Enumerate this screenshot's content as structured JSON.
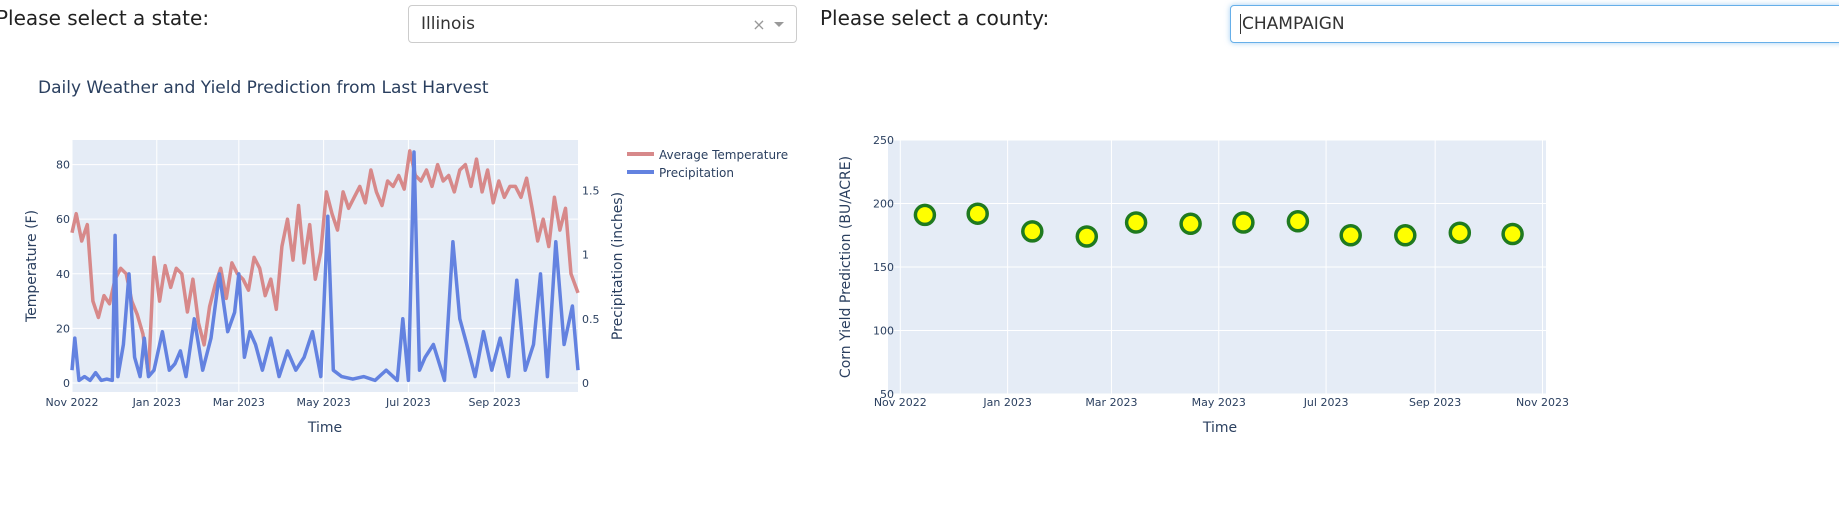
{
  "controls": {
    "state_label": "Please select a state:",
    "state_value": "Illinois",
    "county_label": "Please select a county:",
    "county_value": "CHAMPAIGN"
  },
  "chart_data": [
    {
      "type": "line",
      "title": "Daily Weather and Yield Prediction from Last Harvest",
      "xlabel": "Time",
      "ylabel": "Temperature (F)",
      "y2label": "Precipitation (inches)",
      "x_range": [
        "2022-11-01",
        "2023-10-31"
      ],
      "x_ticks": [
        "Nov 2022",
        "Jan 2023",
        "Mar 2023",
        "May 2023",
        "Jul 2023",
        "Sep 2023"
      ],
      "y_ticks": [
        0,
        20,
        40,
        60,
        80
      ],
      "y2_ticks": [
        0,
        0.5,
        1,
        1.5
      ],
      "ylim": [
        0,
        89
      ],
      "y2lim": [
        0,
        1.8
      ],
      "legend_position": "top-right outside",
      "series": [
        {
          "name": "Average Temperature",
          "color": "#d7898a",
          "axis": "y",
          "x": [
            "2022-11-01",
            "2022-11-04",
            "2022-11-08",
            "2022-11-12",
            "2022-11-16",
            "2022-11-20",
            "2022-11-24",
            "2022-11-28",
            "2022-12-02",
            "2022-12-06",
            "2022-12-10",
            "2022-12-14",
            "2022-12-18",
            "2022-12-22",
            "2022-12-26",
            "2022-12-30",
            "2023-01-03",
            "2023-01-07",
            "2023-01-11",
            "2023-01-15",
            "2023-01-19",
            "2023-01-23",
            "2023-01-27",
            "2023-01-31",
            "2023-02-04",
            "2023-02-08",
            "2023-02-12",
            "2023-02-16",
            "2023-02-20",
            "2023-02-24",
            "2023-02-28",
            "2023-03-04",
            "2023-03-08",
            "2023-03-12",
            "2023-03-16",
            "2023-03-20",
            "2023-03-24",
            "2023-03-28",
            "2023-04-01",
            "2023-04-05",
            "2023-04-09",
            "2023-04-13",
            "2023-04-17",
            "2023-04-21",
            "2023-04-25",
            "2023-04-29",
            "2023-05-03",
            "2023-05-07",
            "2023-05-11",
            "2023-05-15",
            "2023-05-19",
            "2023-05-23",
            "2023-05-27",
            "2023-05-31",
            "2023-06-04",
            "2023-06-08",
            "2023-06-12",
            "2023-06-16",
            "2023-06-20",
            "2023-06-24",
            "2023-06-28",
            "2023-07-02",
            "2023-07-06",
            "2023-07-10",
            "2023-07-14",
            "2023-07-18",
            "2023-07-22",
            "2023-07-26",
            "2023-07-30",
            "2023-08-03",
            "2023-08-07",
            "2023-08-11",
            "2023-08-15",
            "2023-08-19",
            "2023-08-23",
            "2023-08-27",
            "2023-08-31",
            "2023-09-04",
            "2023-09-08",
            "2023-09-12",
            "2023-09-16",
            "2023-09-20",
            "2023-09-24",
            "2023-09-28",
            "2023-10-02",
            "2023-10-06",
            "2023-10-10",
            "2023-10-14",
            "2023-10-18",
            "2023-10-22",
            "2023-10-26",
            "2023-10-31"
          ],
          "values": [
            55,
            62,
            52,
            58,
            30,
            24,
            32,
            29,
            38,
            42,
            40,
            30,
            25,
            18,
            3,
            46,
            30,
            43,
            35,
            42,
            40,
            26,
            38,
            22,
            14,
            28,
            36,
            42,
            31,
            44,
            40,
            38,
            34,
            46,
            42,
            32,
            38,
            27,
            50,
            60,
            45,
            65,
            44,
            58,
            38,
            48,
            70,
            62,
            56,
            70,
            64,
            68,
            72,
            66,
            78,
            70,
            65,
            74,
            72,
            76,
            71,
            85,
            76,
            74,
            78,
            72,
            80,
            74,
            76,
            70,
            78,
            80,
            72,
            82,
            70,
            78,
            66,
            74,
            68,
            72,
            72,
            68,
            75,
            64,
            52,
            60,
            50,
            68,
            56,
            64,
            40,
            33
          ]
        },
        {
          "name": "Precipitation",
          "color": "#6382e0",
          "axis": "y2",
          "x": [
            "2022-11-01",
            "2022-11-03",
            "2022-11-06",
            "2022-11-10",
            "2022-11-14",
            "2022-11-18",
            "2022-11-22",
            "2022-11-26",
            "2022-11-30",
            "2022-12-02",
            "2022-12-04",
            "2022-12-08",
            "2022-12-12",
            "2022-12-16",
            "2022-12-20",
            "2022-12-23",
            "2022-12-26",
            "2022-12-30",
            "2023-01-05",
            "2023-01-10",
            "2023-01-14",
            "2023-01-18",
            "2023-01-22",
            "2023-01-28",
            "2023-02-03",
            "2023-02-09",
            "2023-02-15",
            "2023-02-21",
            "2023-02-26",
            "2023-03-01",
            "2023-03-05",
            "2023-03-09",
            "2023-03-13",
            "2023-03-18",
            "2023-03-24",
            "2023-03-30",
            "2023-04-05",
            "2023-04-11",
            "2023-04-17",
            "2023-04-23",
            "2023-04-29",
            "2023-05-04",
            "2023-05-08",
            "2023-05-14",
            "2023-05-22",
            "2023-05-30",
            "2023-06-07",
            "2023-06-15",
            "2023-06-23",
            "2023-06-27",
            "2023-07-01",
            "2023-07-05",
            "2023-07-09",
            "2023-07-13",
            "2023-07-19",
            "2023-07-27",
            "2023-08-02",
            "2023-08-07",
            "2023-08-12",
            "2023-08-18",
            "2023-08-24",
            "2023-08-30",
            "2023-09-05",
            "2023-09-11",
            "2023-09-17",
            "2023-09-23",
            "2023-09-29",
            "2023-10-04",
            "2023-10-09",
            "2023-10-15",
            "2023-10-21",
            "2023-10-27",
            "2023-10-31"
          ],
          "values": [
            0.1,
            0.35,
            0.02,
            0.05,
            0.02,
            0.08,
            0.02,
            0.03,
            0.02,
            1.15,
            0.05,
            0.3,
            0.85,
            0.2,
            0.05,
            0.35,
            0.05,
            0.1,
            0.4,
            0.1,
            0.15,
            0.25,
            0.05,
            0.5,
            0.1,
            0.35,
            0.85,
            0.4,
            0.55,
            0.85,
            0.2,
            0.4,
            0.3,
            0.1,
            0.35,
            0.05,
            0.25,
            0.1,
            0.2,
            0.4,
            0.05,
            1.3,
            0.1,
            0.05,
            0.03,
            0.05,
            0.02,
            0.1,
            0.02,
            0.5,
            0.02,
            1.8,
            0.1,
            0.2,
            0.3,
            0.02,
            1.1,
            0.5,
            0.3,
            0.05,
            0.4,
            0.1,
            0.35,
            0.05,
            0.8,
            0.1,
            0.3,
            0.85,
            0.05,
            1.1,
            0.3,
            0.6,
            0.1
          ]
        }
      ]
    },
    {
      "type": "scatter",
      "xlabel": "Time",
      "ylabel": "Corn Yield Prediction (BU/ACRE)",
      "x_range": [
        "2022-10-25",
        "2023-11-03"
      ],
      "x_ticks": [
        "Nov 2022",
        "Jan 2023",
        "Mar 2023",
        "May 2023",
        "Jul 2023",
        "Sep 2023",
        "Nov 2023"
      ],
      "y_ticks": [
        50,
        100,
        150,
        200,
        250
      ],
      "ylim": [
        50,
        250
      ],
      "marker_fill": "#ffff00",
      "marker_line": "#1f7a1f",
      "x": [
        "2022-11-15",
        "2022-12-15",
        "2023-01-15",
        "2023-02-15",
        "2023-03-15",
        "2023-04-15",
        "2023-05-15",
        "2023-06-15",
        "2023-07-15",
        "2023-08-15",
        "2023-09-15",
        "2023-10-15"
      ],
      "values": [
        191,
        192,
        178,
        174,
        185,
        184,
        185,
        186,
        175,
        175,
        177,
        176
      ]
    }
  ]
}
